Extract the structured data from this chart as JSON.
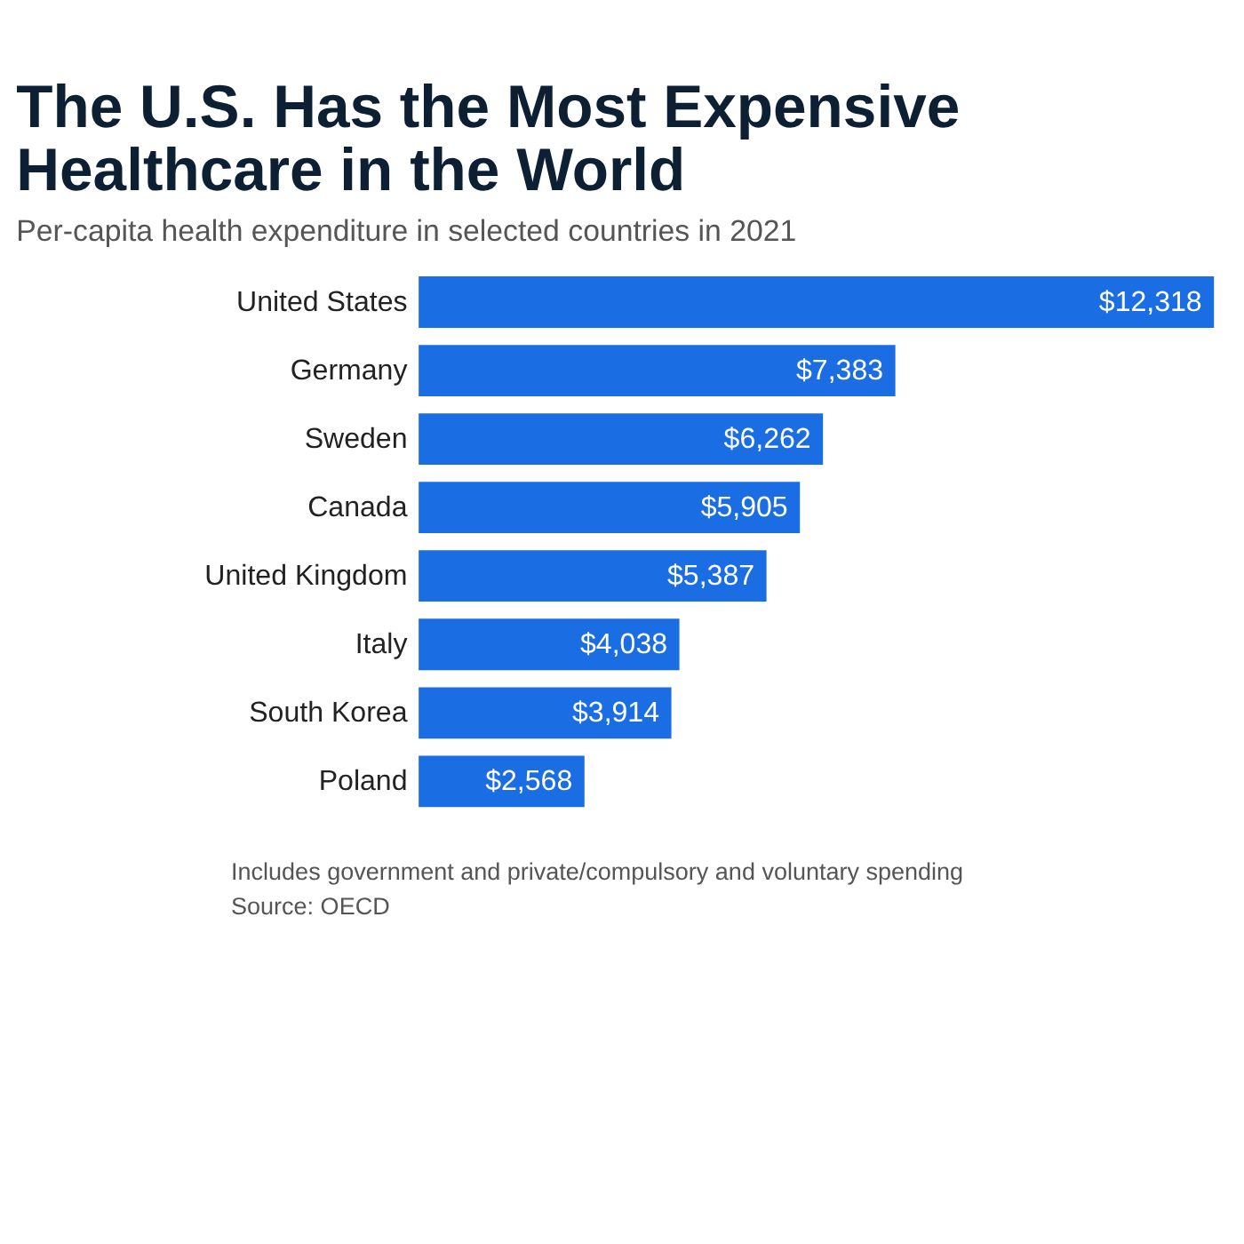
{
  "chart_data": {
    "type": "bar",
    "orientation": "horizontal",
    "title": [
      "The U.S. Has the Most Expensive",
      "Healthcare in the World"
    ],
    "subtitle": "Per-capita health expenditure in selected countries in 2021",
    "categories": [
      "United States",
      "Germany",
      "Sweden",
      "Canada",
      "United Kingdom",
      "Italy",
      "South Korea",
      "Poland"
    ],
    "values": [
      12318,
      7383,
      6262,
      5905,
      5387,
      4038,
      3914,
      2568
    ],
    "value_labels": [
      "$12,318",
      "$7,383",
      "$6,262",
      "$5,905",
      "$5,387",
      "$4,038",
      "$3,914",
      "$2,568"
    ],
    "color": "#1a6de3",
    "annotations": [
      "Includes government and private/compulsory and voluntary spending",
      "Source: OECD"
    ],
    "legend": false
  }
}
